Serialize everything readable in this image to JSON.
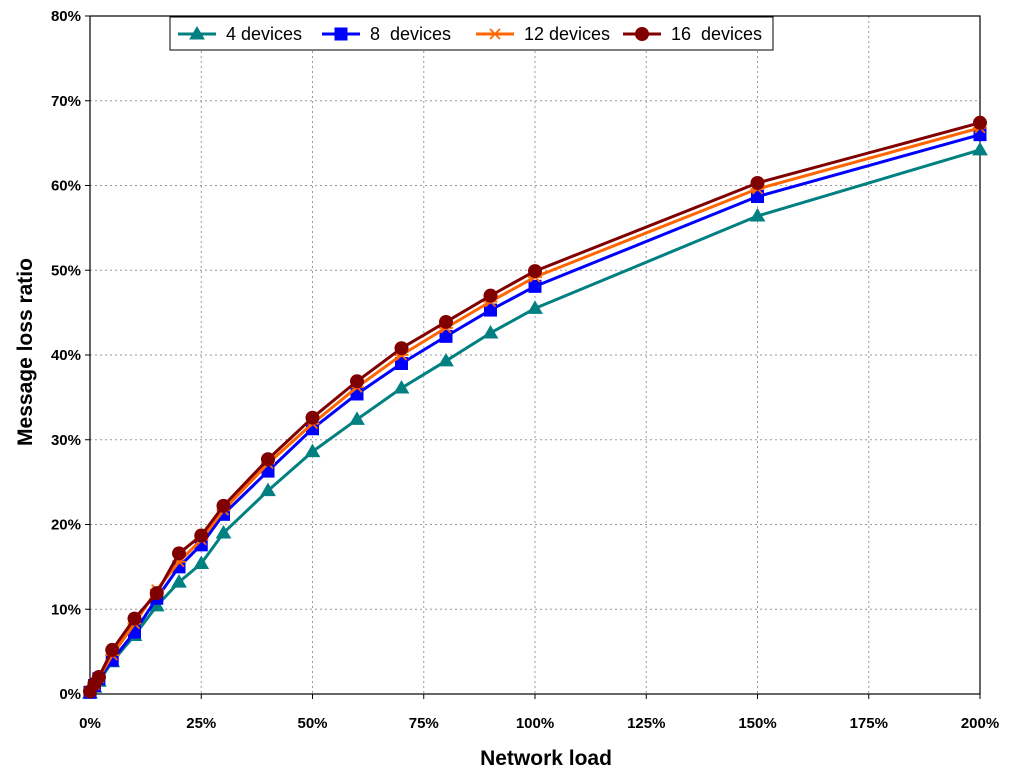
{
  "chart_data": {
    "type": "line",
    "title": "",
    "xlabel": "Network load",
    "ylabel": "Message loss ratio",
    "xlim": [
      0,
      200
    ],
    "ylim": [
      0,
      80
    ],
    "grid": true,
    "legend_position": "top",
    "x_ticks": [
      0,
      25,
      50,
      75,
      100,
      125,
      150,
      175,
      200
    ],
    "x_tick_labels": [
      "0%",
      "25%",
      "50%",
      "75%",
      "100%",
      "125%",
      "150%",
      "175%",
      "200%"
    ],
    "y_ticks": [
      0,
      10,
      20,
      30,
      40,
      50,
      60,
      70,
      80
    ],
    "y_tick_labels": [
      "0%",
      "10%",
      "20%",
      "30%",
      "40%",
      "50%",
      "60%",
      "70%",
      "80%"
    ],
    "x": [
      0,
      1,
      2,
      5,
      10,
      15,
      20,
      25,
      30,
      40,
      50,
      60,
      70,
      80,
      90,
      100,
      150,
      200
    ],
    "series": [
      {
        "name": "4 devices",
        "marker": "triangle",
        "color": "#008080",
        "values": [
          0.1,
          0.8,
          1.5,
          3.8,
          6.9,
          10.4,
          13.2,
          15.4,
          19.0,
          24.0,
          28.6,
          32.4,
          36.1,
          39.3,
          42.6,
          45.5,
          56.4,
          64.2
        ]
      },
      {
        "name": "8  devices",
        "marker": "square",
        "color": "#0000ff",
        "values": [
          0.2,
          1.0,
          1.8,
          4.0,
          7.3,
          11.3,
          15.0,
          17.6,
          21.2,
          26.3,
          31.3,
          35.4,
          39.0,
          42.2,
          45.3,
          48.1,
          58.7,
          66.0
        ]
      },
      {
        "name": "12 devices",
        "marker": "asterisk",
        "color": "#ff6600",
        "values": [
          0.3,
          1.1,
          1.9,
          4.6,
          8.3,
          12.3,
          15.6,
          18.2,
          21.7,
          27.2,
          31.9,
          36.2,
          40.0,
          43.2,
          46.3,
          49.2,
          59.6,
          66.8
        ]
      },
      {
        "name": "16  devices",
        "marker": "circle",
        "color": "#800000",
        "values": [
          0.3,
          1.2,
          2.0,
          5.2,
          8.9,
          11.9,
          16.6,
          18.7,
          22.2,
          27.7,
          32.6,
          36.9,
          40.8,
          43.9,
          47.0,
          49.9,
          60.3,
          67.4
        ]
      }
    ]
  }
}
